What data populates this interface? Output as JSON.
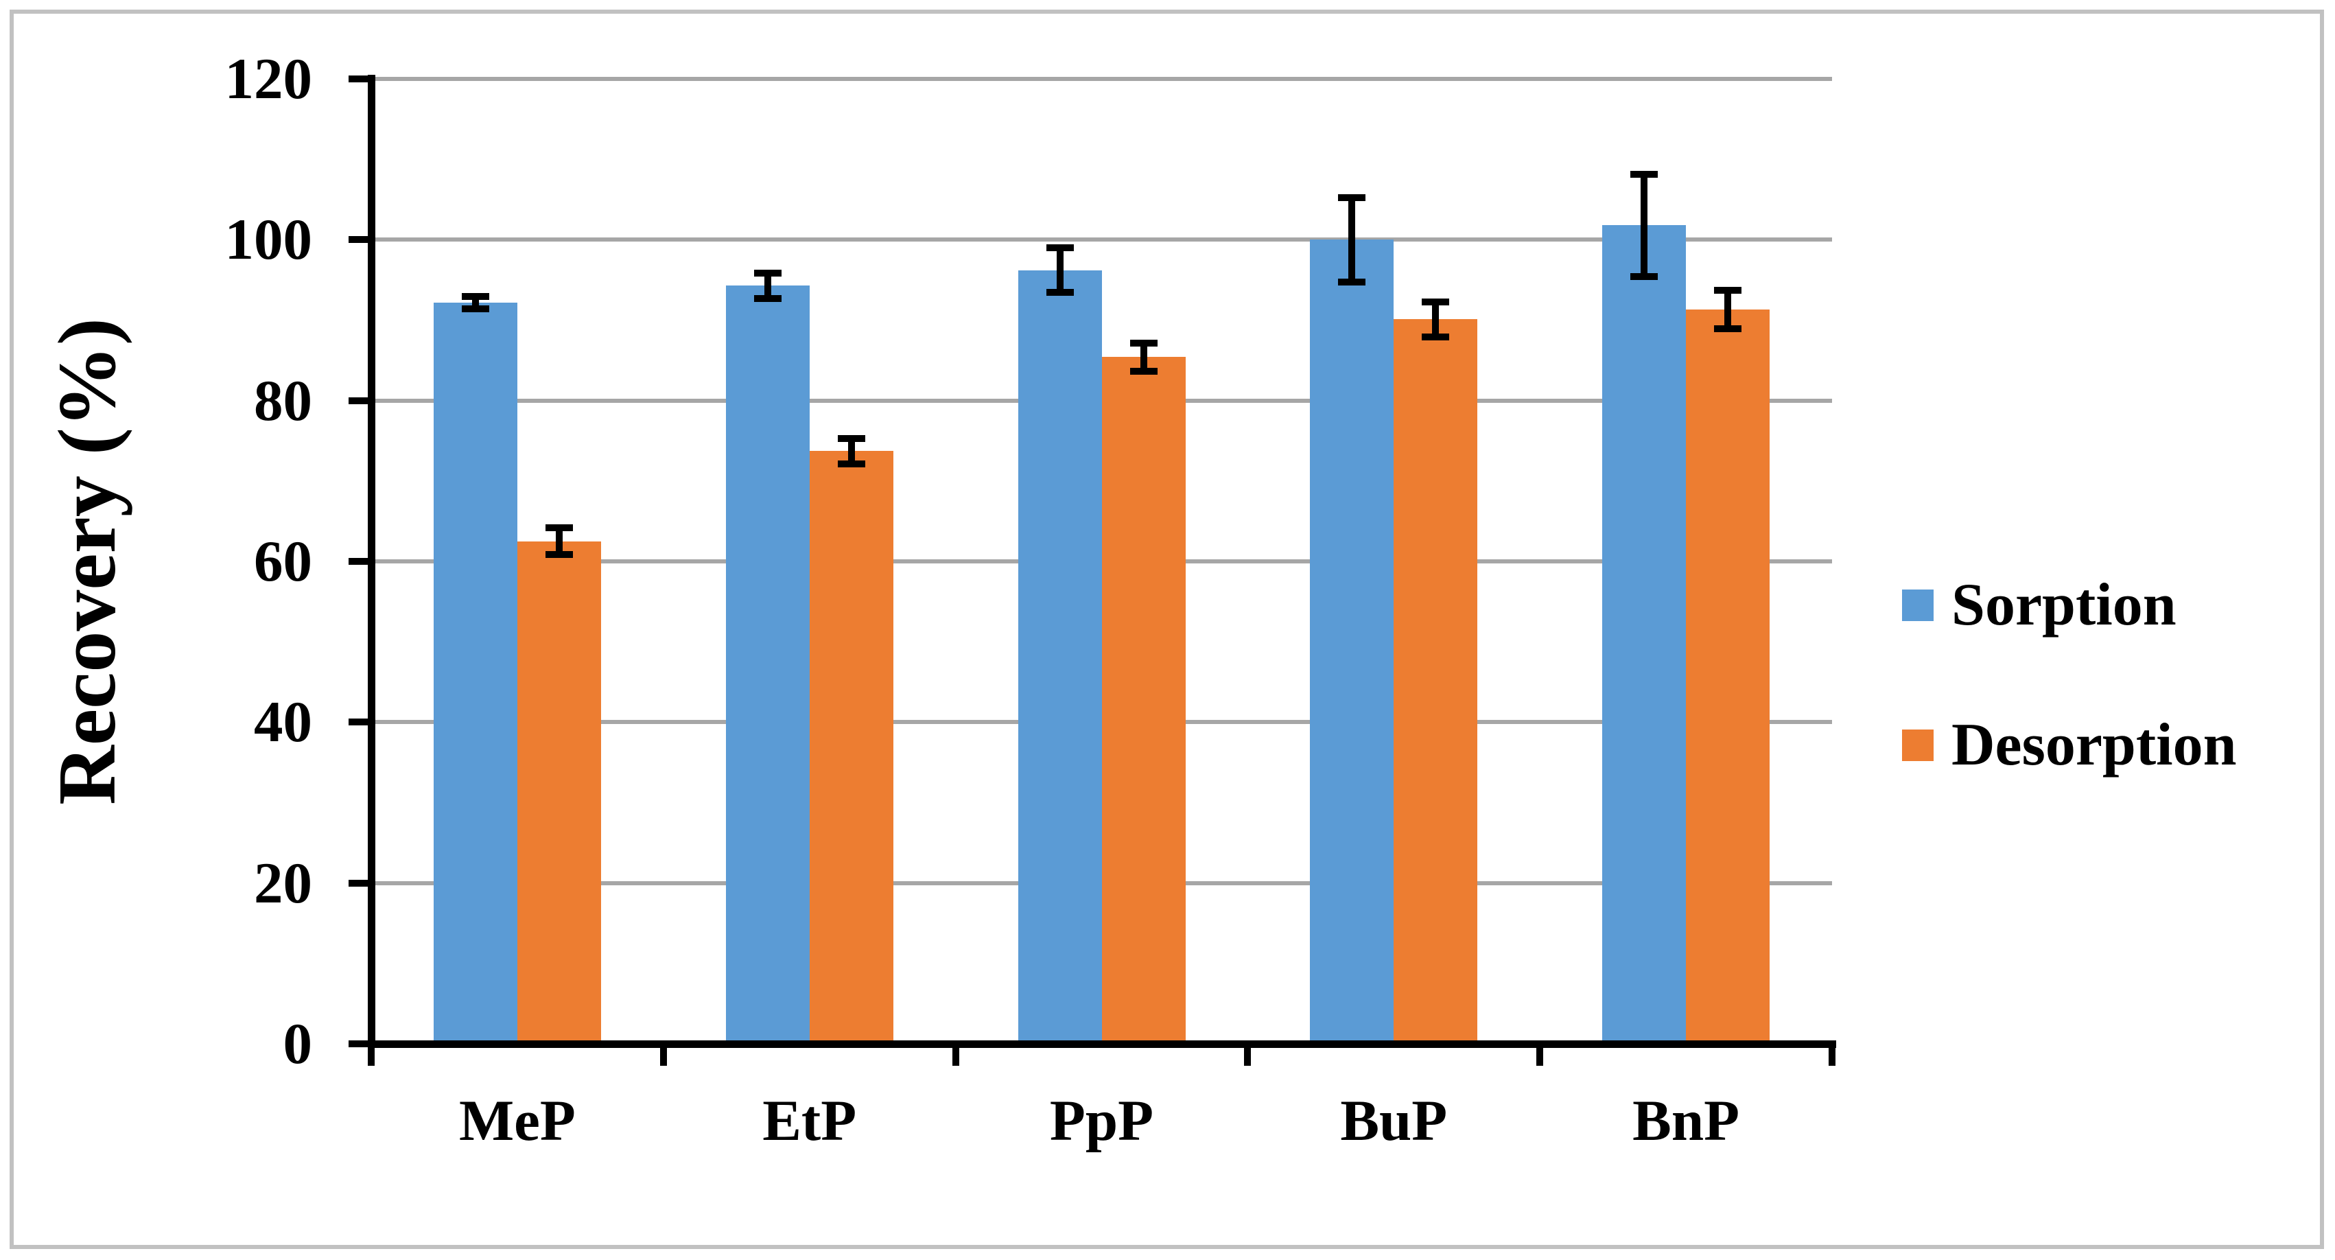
{
  "figure": {
    "background": "#ffffff",
    "border_color": "#c1c1c1"
  },
  "chart_data": {
    "type": "bar",
    "title": "",
    "xlabel": "",
    "ylabel": "Recovery (%)",
    "categories": [
      "MeP",
      "EtP",
      "PpP",
      "BuP",
      "BnP"
    ],
    "series": [
      {
        "name": "Sorption",
        "color": "#5B9BD5",
        "values": [
          92.2,
          94.3,
          96.2,
          100.0,
          101.8
        ],
        "errors": [
          1.2,
          2.0,
          3.2,
          5.7,
          6.8
        ]
      },
      {
        "name": "Desorption",
        "color": "#ED7D31",
        "values": [
          62.5,
          73.7,
          85.4,
          90.1,
          91.3
        ],
        "errors": [
          2.1,
          2.0,
          2.2,
          2.6,
          2.8
        ]
      }
    ],
    "ylim": [
      0,
      120
    ],
    "yticks": [
      0,
      20,
      40,
      60,
      80,
      100,
      120
    ],
    "grid": "horizontal",
    "gridline_color": "#A6A6A6",
    "axis_color": "#000000",
    "error_bar_color": "#000000",
    "legend_position": "right"
  }
}
